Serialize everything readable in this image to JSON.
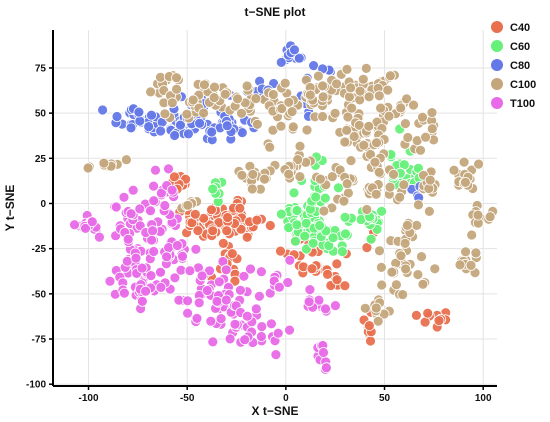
{
  "chart_data": {
    "type": "scatter",
    "title": "t−SNE plot",
    "xlabel": "X t−SNE",
    "ylabel": "Y t−SNE",
    "xlim": [
      -118,
      107
    ],
    "ylim": [
      -101,
      96
    ],
    "x_ticks": [
      -100,
      -50,
      0,
      50,
      100
    ],
    "y_ticks": [
      -100,
      -75,
      -50,
      -25,
      0,
      25,
      50,
      75
    ],
    "x_tick_labels": [
      "-100",
      "-50",
      "0",
      "50",
      "100"
    ],
    "y_tick_labels": [
      "-100",
      "-75",
      "-50",
      "-25",
      "0",
      "25",
      "50",
      "75"
    ],
    "grid": true,
    "legend_position": "top-right",
    "series": [
      {
        "name": "C40",
        "color": "#E8704F",
        "clusters": [
          {
            "cx": -54,
            "cy": 11,
            "sx": 3,
            "sy": 3,
            "n": 10
          },
          {
            "cx": -38,
            "cy": -11,
            "sx": 10,
            "sy": 5,
            "n": 55
          },
          {
            "cx": -22,
            "cy": -8,
            "sx": 6,
            "sy": 5,
            "n": 25
          },
          {
            "cx": -28,
            "cy": -30,
            "sx": 5,
            "sy": 5,
            "n": 15
          },
          {
            "cx": 7,
            "cy": -23,
            "sx": 4,
            "sy": 4,
            "n": 12
          },
          {
            "cx": 13,
            "cy": -33,
            "sx": 6,
            "sy": 4,
            "n": 15
          },
          {
            "cx": 23,
            "cy": -42,
            "sx": 3,
            "sy": 3,
            "n": 8
          },
          {
            "cx": 42,
            "cy": -67,
            "sx": 2,
            "sy": 4,
            "n": 8
          },
          {
            "cx": 76,
            "cy": -66,
            "sx": 4,
            "sy": 3,
            "n": 10
          },
          {
            "cx": 41,
            "cy": -17,
            "sx": 3,
            "sy": 3,
            "n": 5
          }
        ]
      },
      {
        "name": "C60",
        "color": "#66F07A",
        "clusters": [
          {
            "cx": -35,
            "cy": 8,
            "sx": 2,
            "sy": 3,
            "n": 10
          },
          {
            "cx": 8,
            "cy": -8,
            "sx": 6,
            "sy": 6,
            "n": 35
          },
          {
            "cx": 20,
            "cy": -17,
            "sx": 7,
            "sy": 5,
            "n": 35
          },
          {
            "cx": 18,
            "cy": 10,
            "sx": 4,
            "sy": 6,
            "n": 15
          },
          {
            "cx": 40,
            "cy": -10,
            "sx": 5,
            "sy": 6,
            "n": 20
          },
          {
            "cx": 57,
            "cy": 20,
            "sx": 4,
            "sy": 8,
            "n": 18
          },
          {
            "cx": 66,
            "cy": 14,
            "sx": 2,
            "sy": 3,
            "n": 6
          }
        ]
      },
      {
        "name": "C80",
        "color": "#6478E8",
        "clusters": [
          {
            "cx": 2,
            "cy": 82,
            "sx": 4,
            "sy": 2,
            "n": 12
          },
          {
            "cx": -72,
            "cy": 45,
            "sx": 8,
            "sy": 4,
            "n": 35
          },
          {
            "cx": -50,
            "cy": 44,
            "sx": 10,
            "sy": 4,
            "n": 30
          },
          {
            "cx": -30,
            "cy": 42,
            "sx": 8,
            "sy": 4,
            "n": 20
          },
          {
            "cx": -42,
            "cy": 56,
            "sx": 6,
            "sy": 3,
            "n": 12
          },
          {
            "cx": -12,
            "cy": 62,
            "sx": 5,
            "sy": 3,
            "n": 10
          },
          {
            "cx": 10,
            "cy": 55,
            "sx": 3,
            "sy": 6,
            "n": 8
          },
          {
            "cx": 20,
            "cy": 75,
            "sx": 3,
            "sy": 2,
            "n": 5
          },
          {
            "cx": 66,
            "cy": 8,
            "sx": 2,
            "sy": 2,
            "n": 4
          }
        ]
      },
      {
        "name": "C100",
        "color": "#C4A67C",
        "clusters": [
          {
            "cx": -60,
            "cy": 68,
            "sx": 4,
            "sy": 3,
            "n": 10
          },
          {
            "cx": -50,
            "cy": 55,
            "sx": 8,
            "sy": 5,
            "n": 20
          },
          {
            "cx": -28,
            "cy": 58,
            "sx": 10,
            "sy": 5,
            "n": 35
          },
          {
            "cx": 0,
            "cy": 55,
            "sx": 8,
            "sy": 8,
            "n": 30
          },
          {
            "cx": 20,
            "cy": 62,
            "sx": 8,
            "sy": 6,
            "n": 30
          },
          {
            "cx": 40,
            "cy": 65,
            "sx": 8,
            "sy": 5,
            "n": 25
          },
          {
            "cx": 55,
            "cy": 50,
            "sx": 8,
            "sy": 6,
            "n": 25
          },
          {
            "cx": 35,
            "cy": 40,
            "sx": 8,
            "sy": 6,
            "n": 25
          },
          {
            "cx": 45,
            "cy": 25,
            "sx": 6,
            "sy": 8,
            "n": 25
          },
          {
            "cx": 5,
            "cy": 20,
            "sx": 10,
            "sy": 5,
            "n": 25
          },
          {
            "cx": -15,
            "cy": 15,
            "sx": 6,
            "sy": 4,
            "n": 12
          },
          {
            "cx": 30,
            "cy": 10,
            "sx": 5,
            "sy": 6,
            "n": 15
          },
          {
            "cx": 48,
            "cy": 5,
            "sx": 5,
            "sy": 5,
            "n": 15
          },
          {
            "cx": 62,
            "cy": -10,
            "sx": 5,
            "sy": 8,
            "n": 20
          },
          {
            "cx": 58,
            "cy": -40,
            "sx": 6,
            "sy": 8,
            "n": 25
          },
          {
            "cx": 46,
            "cy": -58,
            "sx": 4,
            "sy": 4,
            "n": 10
          },
          {
            "cx": 72,
            "cy": 10,
            "sx": 2,
            "sy": 5,
            "n": 10
          },
          {
            "cx": 90,
            "cy": 15,
            "sx": 3,
            "sy": 7,
            "n": 15
          },
          {
            "cx": 98,
            "cy": -10,
            "sx": 3,
            "sy": 4,
            "n": 10
          },
          {
            "cx": 92,
            "cy": -33,
            "sx": 3,
            "sy": 5,
            "n": 12
          },
          {
            "cx": -88,
            "cy": 22,
            "sx": 5,
            "sy": 2,
            "n": 10
          },
          {
            "cx": -49,
            "cy": 0,
            "sx": 2,
            "sy": 2,
            "n": 6
          },
          {
            "cx": 68,
            "cy": 38,
            "sx": 4,
            "sy": 6,
            "n": 12
          }
        ]
      },
      {
        "name": "T100",
        "color": "#E86AE8",
        "clusters": [
          {
            "cx": -100,
            "cy": -12,
            "sx": 5,
            "sy": 3,
            "n": 15
          },
          {
            "cx": -80,
            "cy": -5,
            "sx": 5,
            "sy": 4,
            "n": 15
          },
          {
            "cx": -76,
            "cy": -30,
            "sx": 6,
            "sy": 12,
            "n": 50
          },
          {
            "cx": -60,
            "cy": -20,
            "sx": 6,
            "sy": 14,
            "n": 40
          },
          {
            "cx": -62,
            "cy": 5,
            "sx": 5,
            "sy": 5,
            "n": 15
          },
          {
            "cx": -70,
            "cy": -50,
            "sx": 8,
            "sy": 4,
            "n": 25
          },
          {
            "cx": -35,
            "cy": -45,
            "sx": 8,
            "sy": 8,
            "n": 30
          },
          {
            "cx": -25,
            "cy": -60,
            "sx": 10,
            "sy": 8,
            "n": 35
          },
          {
            "cx": -15,
            "cy": -75,
            "sx": 8,
            "sy": 4,
            "n": 15
          },
          {
            "cx": 15,
            "cy": -55,
            "sx": 5,
            "sy": 4,
            "n": 12
          },
          {
            "cx": 18,
            "cy": -85,
            "sx": 2,
            "sy": 4,
            "n": 10
          },
          {
            "cx": -3,
            "cy": -42,
            "sx": 3,
            "sy": 4,
            "n": 8
          }
        ]
      }
    ]
  }
}
